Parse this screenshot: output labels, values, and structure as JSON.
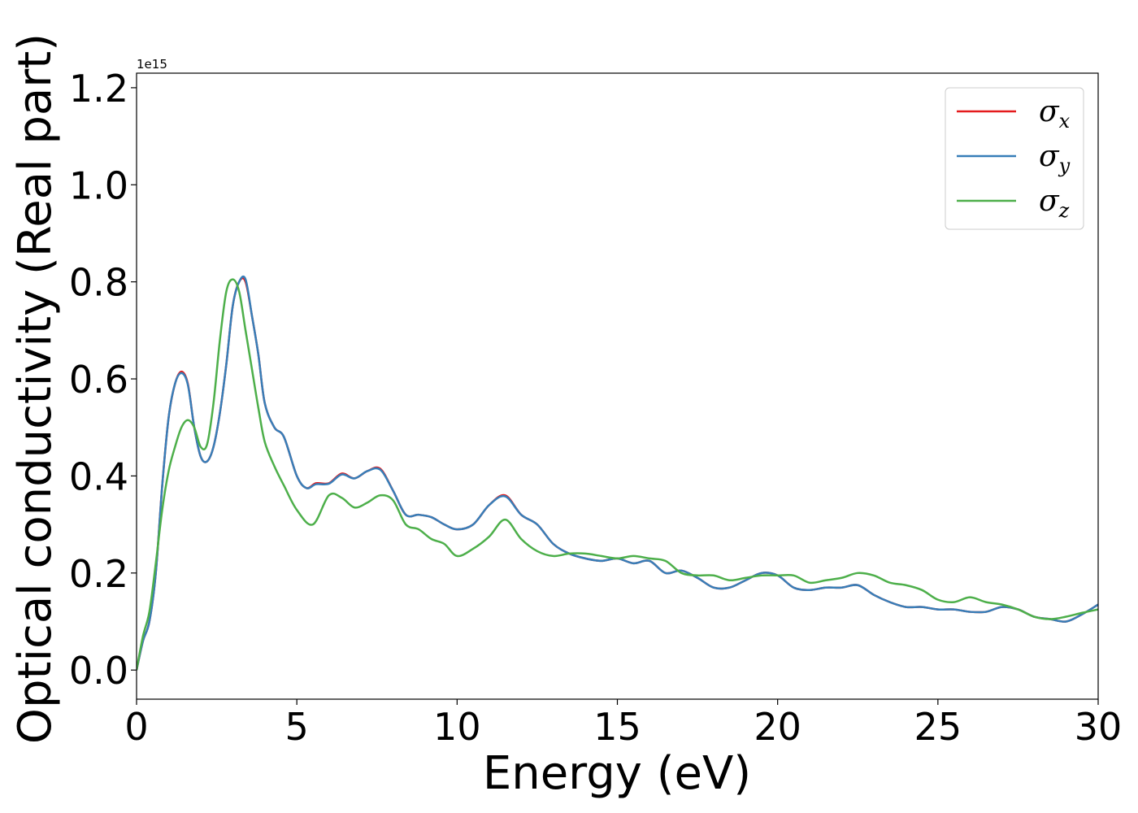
{
  "chart_data": {
    "type": "line",
    "title": "",
    "xlabel": "Energy (eV)",
    "ylabel": "Optical conductivity (Real part)",
    "offset_text": "1e15",
    "xlim": [
      0,
      30
    ],
    "ylim": [
      -0.06,
      1.23
    ],
    "x_ticks": [
      0,
      5,
      10,
      15,
      20,
      25,
      30
    ],
    "x_tick_labels": [
      "0",
      "5",
      "10",
      "15",
      "20",
      "25",
      "30"
    ],
    "y_ticks": [
      0.0,
      0.2,
      0.4,
      0.6,
      0.8,
      1.0,
      1.2
    ],
    "y_tick_labels": [
      "0.0",
      "0.2",
      "0.4",
      "0.6",
      "0.8",
      "1.0",
      "1.2"
    ],
    "y_scale_factor": "1e15",
    "grid": false,
    "legend_position": "top-right",
    "series": [
      {
        "name": "σx",
        "legend_symbol": "σ",
        "legend_sub": "x",
        "color": "#e41a1c",
        "x": [
          0,
          0.2,
          0.4,
          0.6,
          0.8,
          1.0,
          1.2,
          1.4,
          1.6,
          1.8,
          2.0,
          2.2,
          2.4,
          2.6,
          2.8,
          3.0,
          3.2,
          3.4,
          3.6,
          3.8,
          4.0,
          4.3,
          4.6,
          5.0,
          5.3,
          5.6,
          6.0,
          6.4,
          6.8,
          7.2,
          7.6,
          8.0,
          8.4,
          8.8,
          9.2,
          9.6,
          10.0,
          10.5,
          11.0,
          11.5,
          12.0,
          12.5,
          13.0,
          13.5,
          14.0,
          14.5,
          15.0,
          15.5,
          16.0,
          16.5,
          17.0,
          17.5,
          18.0,
          18.5,
          19.0,
          19.5,
          20.0,
          20.5,
          21.0,
          21.5,
          22.0,
          22.5,
          23.0,
          23.5,
          24.0,
          24.5,
          25.0,
          25.5,
          26.0,
          26.5,
          27.0,
          27.5,
          28.0,
          28.5,
          29.0,
          29.5,
          30.0
        ],
        "values": [
          0.0,
          0.06,
          0.1,
          0.2,
          0.38,
          0.52,
          0.59,
          0.615,
          0.59,
          0.5,
          0.44,
          0.43,
          0.46,
          0.53,
          0.63,
          0.75,
          0.8,
          0.8,
          0.73,
          0.65,
          0.55,
          0.5,
          0.48,
          0.4,
          0.375,
          0.385,
          0.385,
          0.405,
          0.395,
          0.41,
          0.415,
          0.37,
          0.32,
          0.32,
          0.315,
          0.3,
          0.29,
          0.3,
          0.34,
          0.36,
          0.32,
          0.3,
          0.26,
          0.24,
          0.23,
          0.225,
          0.23,
          0.22,
          0.225,
          0.2,
          0.205,
          0.19,
          0.17,
          0.17,
          0.185,
          0.2,
          0.195,
          0.17,
          0.165,
          0.17,
          0.17,
          0.175,
          0.155,
          0.14,
          0.13,
          0.13,
          0.125,
          0.125,
          0.12,
          0.12,
          0.13,
          0.125,
          0.11,
          0.105,
          0.1,
          0.115,
          0.135
        ]
      },
      {
        "name": "σy",
        "legend_symbol": "σ",
        "legend_sub": "y",
        "color": "#377eb8",
        "x": [
          0,
          0.2,
          0.4,
          0.6,
          0.8,
          1.0,
          1.2,
          1.4,
          1.6,
          1.8,
          2.0,
          2.2,
          2.4,
          2.6,
          2.8,
          3.0,
          3.2,
          3.4,
          3.6,
          3.8,
          4.0,
          4.3,
          4.6,
          5.0,
          5.3,
          5.6,
          6.0,
          6.4,
          6.8,
          7.2,
          7.6,
          8.0,
          8.4,
          8.8,
          9.2,
          9.6,
          10.0,
          10.5,
          11.0,
          11.5,
          12.0,
          12.5,
          13.0,
          13.5,
          14.0,
          14.5,
          15.0,
          15.5,
          16.0,
          16.5,
          17.0,
          17.5,
          18.0,
          18.5,
          19.0,
          19.5,
          20.0,
          20.5,
          21.0,
          21.5,
          22.0,
          22.5,
          23.0,
          23.5,
          24.0,
          24.5,
          25.0,
          25.5,
          26.0,
          26.5,
          27.0,
          27.5,
          28.0,
          28.5,
          29.0,
          29.5,
          30.0
        ],
        "values": [
          0.0,
          0.06,
          0.1,
          0.2,
          0.38,
          0.52,
          0.59,
          0.612,
          0.588,
          0.5,
          0.44,
          0.43,
          0.46,
          0.53,
          0.63,
          0.75,
          0.8,
          0.805,
          0.73,
          0.65,
          0.55,
          0.5,
          0.48,
          0.4,
          0.375,
          0.383,
          0.384,
          0.403,
          0.395,
          0.41,
          0.413,
          0.37,
          0.32,
          0.32,
          0.315,
          0.3,
          0.29,
          0.3,
          0.34,
          0.358,
          0.32,
          0.3,
          0.26,
          0.24,
          0.23,
          0.225,
          0.23,
          0.22,
          0.225,
          0.2,
          0.205,
          0.19,
          0.17,
          0.17,
          0.185,
          0.2,
          0.195,
          0.17,
          0.165,
          0.17,
          0.17,
          0.175,
          0.155,
          0.14,
          0.13,
          0.13,
          0.125,
          0.125,
          0.12,
          0.12,
          0.13,
          0.125,
          0.11,
          0.105,
          0.1,
          0.115,
          0.135
        ]
      },
      {
        "name": "σz",
        "legend_symbol": "σ",
        "legend_sub": "z",
        "color": "#4daf4a",
        "x": [
          0,
          0.2,
          0.4,
          0.6,
          0.8,
          1.0,
          1.2,
          1.4,
          1.6,
          1.8,
          2.0,
          2.2,
          2.4,
          2.6,
          2.8,
          3.0,
          3.2,
          3.4,
          3.6,
          3.8,
          4.0,
          4.3,
          4.6,
          5.0,
          5.5,
          6.0,
          6.4,
          6.8,
          7.2,
          7.6,
          8.0,
          8.4,
          8.8,
          9.2,
          9.6,
          10.0,
          10.5,
          11.0,
          11.5,
          12.0,
          12.5,
          13.0,
          13.5,
          14.0,
          14.5,
          15.0,
          15.5,
          16.0,
          16.5,
          17.0,
          17.5,
          18.0,
          18.5,
          19.0,
          19.5,
          20.0,
          20.5,
          21.0,
          21.5,
          22.0,
          22.5,
          23.0,
          23.5,
          24.0,
          24.5,
          25.0,
          25.5,
          26.0,
          26.5,
          27.0,
          27.5,
          28.0,
          28.5,
          29.0,
          29.5,
          30.0
        ],
        "values": [
          0.0,
          0.07,
          0.12,
          0.22,
          0.33,
          0.41,
          0.46,
          0.5,
          0.515,
          0.5,
          0.46,
          0.465,
          0.55,
          0.68,
          0.78,
          0.805,
          0.78,
          0.7,
          0.62,
          0.54,
          0.47,
          0.42,
          0.38,
          0.33,
          0.3,
          0.36,
          0.355,
          0.335,
          0.345,
          0.36,
          0.35,
          0.3,
          0.29,
          0.27,
          0.26,
          0.235,
          0.25,
          0.275,
          0.31,
          0.27,
          0.245,
          0.235,
          0.24,
          0.24,
          0.235,
          0.23,
          0.235,
          0.23,
          0.225,
          0.2,
          0.195,
          0.195,
          0.185,
          0.19,
          0.195,
          0.195,
          0.195,
          0.18,
          0.185,
          0.19,
          0.2,
          0.195,
          0.18,
          0.175,
          0.165,
          0.145,
          0.14,
          0.15,
          0.14,
          0.135,
          0.125,
          0.11,
          0.105,
          0.11,
          0.118,
          0.125
        ]
      }
    ]
  }
}
